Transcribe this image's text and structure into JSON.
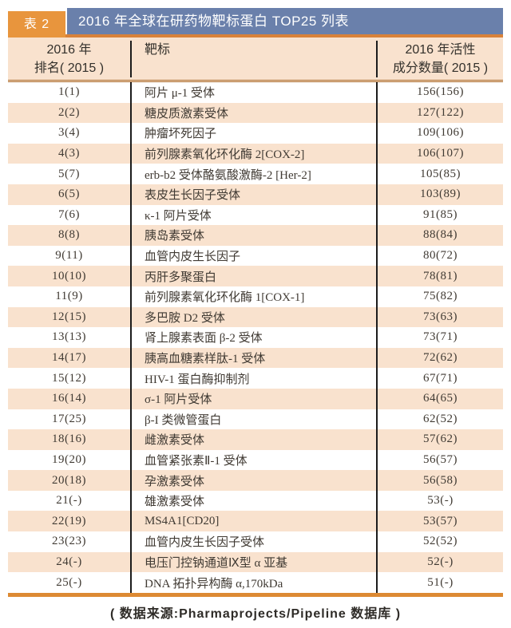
{
  "title_band": {
    "tag": "表 2",
    "title": "2016 年全球在研药物靶标蛋白 TOP25 列表"
  },
  "columns": {
    "rank_line1": "2016 年",
    "rank_line2": "排名( 2015 )",
    "target": "靶标",
    "count_line1": "2016 年活性",
    "count_line2": "成分数量( 2015 )"
  },
  "rows": [
    {
      "rank": "1(1)",
      "target": "阿片 μ-1 受体",
      "count": "156(156)"
    },
    {
      "rank": "2(2)",
      "target": "糖皮质激素受体",
      "count": "127(122)"
    },
    {
      "rank": "3(4)",
      "target": "肿瘤坏死因子",
      "count": "109(106)"
    },
    {
      "rank": "4(3)",
      "target": "前列腺素氧化环化酶 2[COX-2]",
      "count": "106(107)"
    },
    {
      "rank": "5(7)",
      "target": "erb-b2 受体酪氨酸激酶-2 [Her-2]",
      "count": "105(85)"
    },
    {
      "rank": "6(5)",
      "target": "表皮生长因子受体",
      "count": "103(89)"
    },
    {
      "rank": "7(6)",
      "target": "κ-1 阿片受体",
      "count": "91(85)"
    },
    {
      "rank": "8(8)",
      "target": "胰岛素受体",
      "count": "88(84)"
    },
    {
      "rank": "9(11)",
      "target": "血管内皮生长因子",
      "count": "80(72)"
    },
    {
      "rank": "10(10)",
      "target": "丙肝多聚蛋白",
      "count": "78(81)"
    },
    {
      "rank": "11(9)",
      "target": "前列腺素氧化环化酶 1[COX-1]",
      "count": "75(82)"
    },
    {
      "rank": "12(15)",
      "target": "多巴胺 D2 受体",
      "count": "73(63)"
    },
    {
      "rank": "13(13)",
      "target": "肾上腺素表面 β-2 受体",
      "count": "73(71)"
    },
    {
      "rank": "14(17)",
      "target": "胰高血糖素样肽-1 受体",
      "count": "72(62)"
    },
    {
      "rank": "15(12)",
      "target": "HIV-1 蛋白酶抑制剂",
      "count": "67(71)"
    },
    {
      "rank": "16(14)",
      "target": "σ-1 阿片受体",
      "count": "64(65)"
    },
    {
      "rank": "17(25)",
      "target": "β-I 类微管蛋白",
      "count": "62(52)"
    },
    {
      "rank": "18(16)",
      "target": "雌激素受体",
      "count": "57(62)"
    },
    {
      "rank": "19(20)",
      "target": "血管紧张素Ⅱ-1 受体",
      "count": "56(57)"
    },
    {
      "rank": "20(18)",
      "target": "孕激素受体",
      "count": "56(58)"
    },
    {
      "rank": "21(-)",
      "target": "雄激素受体",
      "count": "53(-)"
    },
    {
      "rank": "22(19)",
      "target": "MS4A1[CD20]",
      "count": "53(57)"
    },
    {
      "rank": "23(23)",
      "target": "血管内皮生长因子受体",
      "count": "52(52)"
    },
    {
      "rank": "24(-)",
      "target": "电压门控钠通道Ⅸ型 α 亚基",
      "count": "52(-)"
    },
    {
      "rank": "25(-)",
      "target": "DNA 拓扑异构酶 α,170kDa",
      "count": "51(-)"
    }
  ],
  "footer": "( 数据来源:Pharmaprojects/Pipeline 数据库 )",
  "colors": {
    "accent_orange": "#e8953d",
    "band_blue": "#6a80ab",
    "row_peach": "#f9e2ce",
    "rule_brown": "#a96a2c",
    "bottom_bar_orange": "#dd8a33",
    "text": "#33302b"
  }
}
